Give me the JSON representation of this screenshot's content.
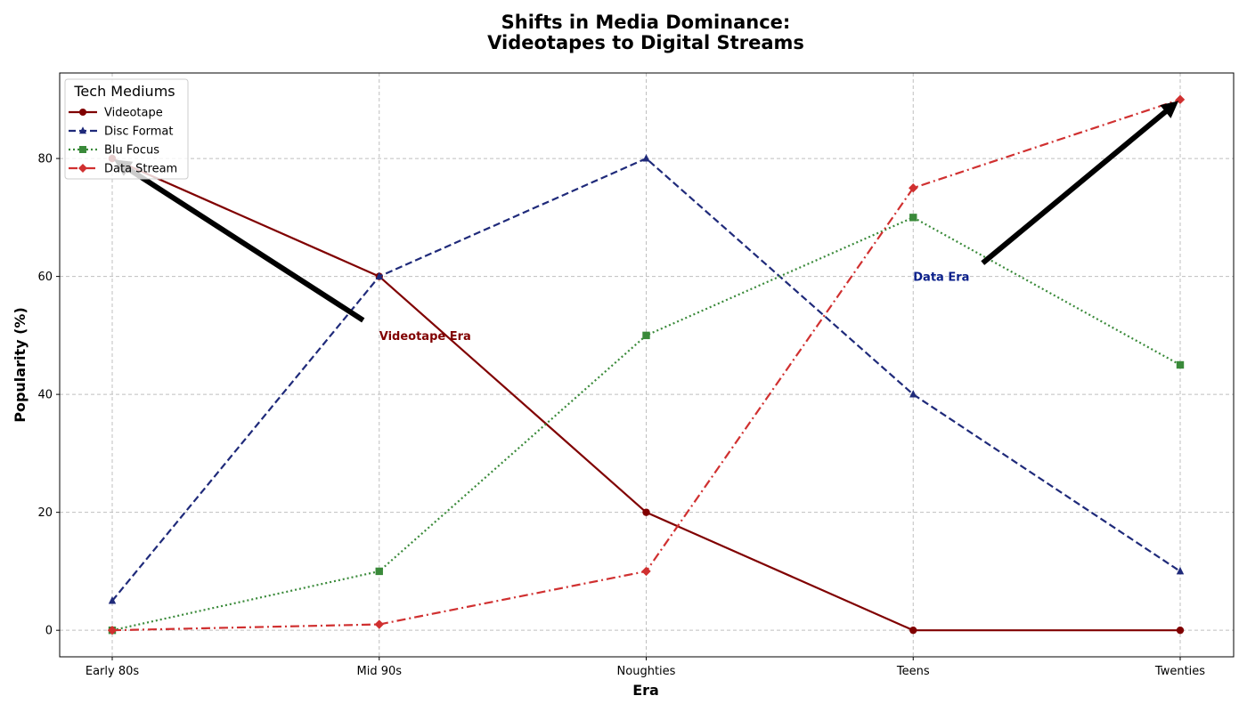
{
  "chart_data": {
    "type": "line",
    "title_lines": [
      "Shifts in Media Dominance:",
      "Videotapes to Digital Streams"
    ],
    "xlabel": "Era",
    "ylabel": "Popularity (%)",
    "categories": [
      "Early 80s",
      "Mid 90s",
      "Noughties",
      "Teens",
      "Twenties"
    ],
    "ylim": [
      -4.5,
      94.5
    ],
    "yticks": [
      0,
      20,
      40,
      60,
      80
    ],
    "grid": true,
    "legend": {
      "title": "Tech Mediums",
      "placement": "top-left"
    },
    "series": [
      {
        "name": "Videotape",
        "values": [
          80,
          60,
          20,
          0,
          0
        ],
        "color": "#800000",
        "dash": "solid",
        "marker": "circle"
      },
      {
        "name": "Disc Format",
        "values": [
          5,
          60,
          80,
          40,
          10
        ],
        "color": "#1f2a7a",
        "dash": "dashed",
        "marker": "triangle"
      },
      {
        "name": "Blu Focus",
        "values": [
          0,
          10,
          50,
          70,
          45
        ],
        "color": "#3a8a3a",
        "dash": "dotted",
        "marker": "square"
      },
      {
        "name": "Data Stream",
        "values": [
          0,
          1,
          10,
          75,
          90
        ],
        "color": "#d03030",
        "dash": "dashdot",
        "marker": "diamond"
      }
    ],
    "annotations": [
      {
        "text": "Videotape Era",
        "color": "#800000",
        "text_x": 1,
        "text_y": 50,
        "arrow_to_x": 0,
        "arrow_to_y": 80
      },
      {
        "text": "Data Era",
        "color": "#0a1f8a",
        "text_x": 3,
        "text_y": 60,
        "arrow_to_x": 4,
        "arrow_to_y": 90
      }
    ]
  }
}
